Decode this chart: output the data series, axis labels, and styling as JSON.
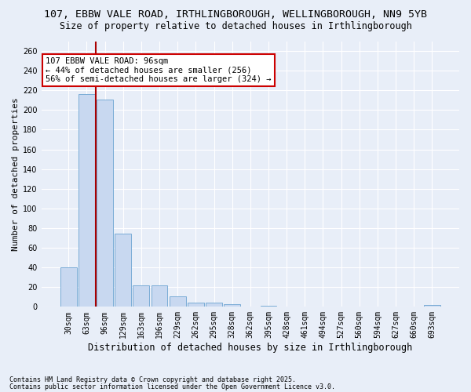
{
  "title_line1": "107, EBBW VALE ROAD, IRTHLINGBOROUGH, WELLINGBOROUGH, NN9 5YB",
  "title_line2": "Size of property relative to detached houses in Irthlingborough",
  "xlabel": "Distribution of detached houses by size in Irthlingborough",
  "ylabel": "Number of detached properties",
  "footnote1": "Contains HM Land Registry data © Crown copyright and database right 2025.",
  "footnote2": "Contains public sector information licensed under the Open Government Licence v3.0.",
  "bar_labels": [
    "30sqm",
    "63sqm",
    "96sqm",
    "129sqm",
    "163sqm",
    "196sqm",
    "229sqm",
    "262sqm",
    "295sqm",
    "328sqm",
    "362sqm",
    "395sqm",
    "428sqm",
    "461sqm",
    "494sqm",
    "527sqm",
    "560sqm",
    "594sqm",
    "627sqm",
    "660sqm",
    "693sqm"
  ],
  "bar_values": [
    40,
    216,
    211,
    74,
    22,
    22,
    11,
    4,
    4,
    3,
    0,
    1,
    0,
    0,
    0,
    0,
    0,
    0,
    0,
    0,
    2
  ],
  "bar_color": "#c8d8f0",
  "bar_edge_color": "#7aacd6",
  "red_line_x": 1.5,
  "ylim": [
    0,
    270
  ],
  "yticks": [
    0,
    20,
    40,
    60,
    80,
    100,
    120,
    140,
    160,
    180,
    200,
    220,
    240,
    260
  ],
  "annotation_text": "107 EBBW VALE ROAD: 96sqm\n← 44% of detached houses are smaller (256)\n56% of semi-detached houses are larger (324) →",
  "annotation_box_facecolor": "#ffffff",
  "annotation_box_edgecolor": "#cc0000",
  "background_color": "#e8eef8",
  "grid_color": "#ffffff",
  "title_fontsize": 9.5,
  "subtitle_fontsize": 8.5,
  "axis_label_fontsize": 8,
  "tick_fontsize": 7,
  "annot_fontsize": 7.5,
  "footnote_fontsize": 6
}
